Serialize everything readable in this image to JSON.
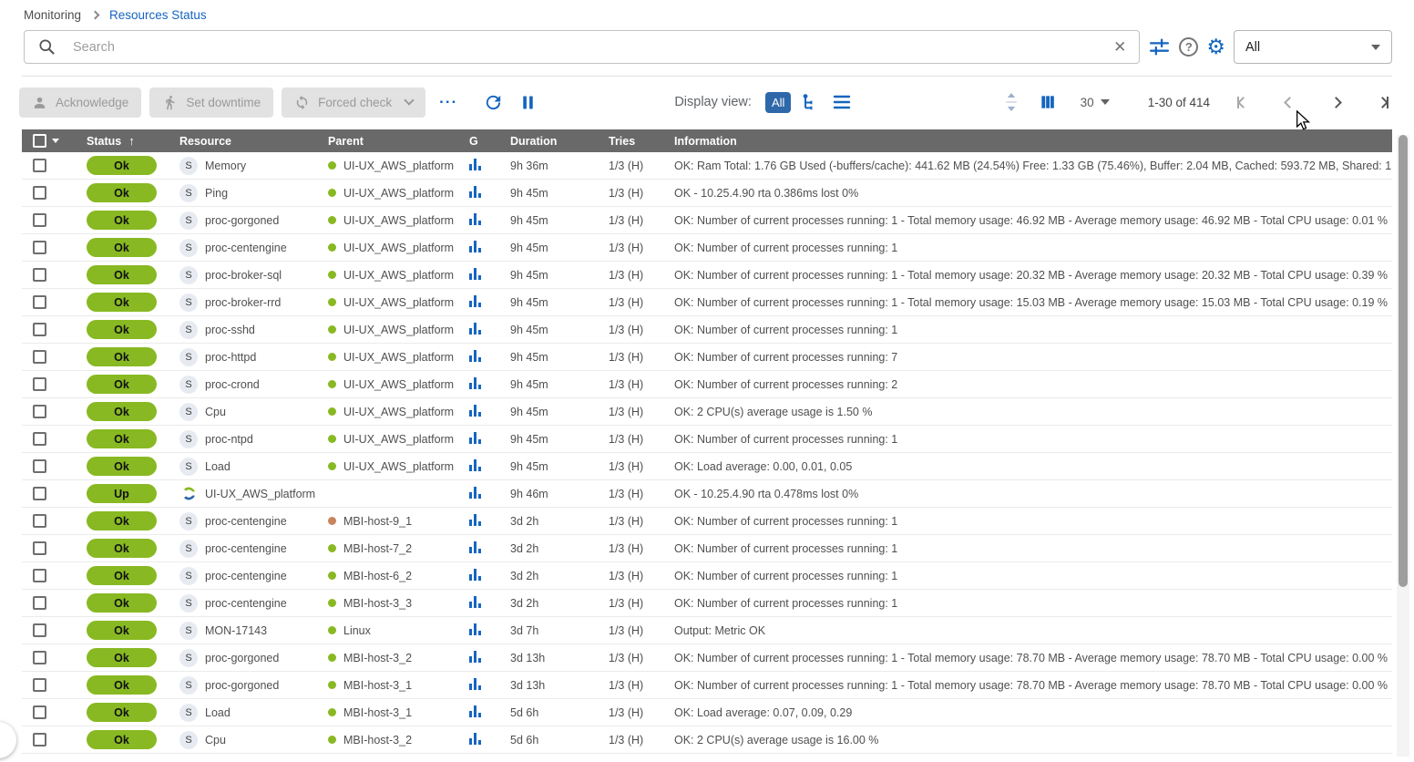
{
  "breadcrumb": {
    "items": [
      "Monitoring",
      "Resources Status"
    ]
  },
  "search": {
    "placeholder": "Search"
  },
  "filter_select": {
    "value": "All"
  },
  "icons": {
    "help": "?",
    "gear": "⚙",
    "clear": "✕",
    "more": "...",
    "service_letter": "S"
  },
  "toolbar": {
    "acknowledge_label": "Acknowledge",
    "set_downtime_label": "Set downtime",
    "forced_check_label": "Forced check",
    "display_view_label": "Display view:",
    "display_all_label": "All"
  },
  "pagination": {
    "per_page": "30",
    "range": "1-30 of 414"
  },
  "colors": {
    "ok_green": "#88b922",
    "parent_ok_dot": "#88b922",
    "parent_warning_dot": "#c8845c",
    "accent_blue": "#1565c0",
    "selected_view_bg": "#2e68aa",
    "header_bg": "#696969"
  },
  "table": {
    "headers": {
      "status": "Status",
      "sort_icon": "↑",
      "resource": "Resource",
      "parent": "Parent",
      "g": "G",
      "duration": "Duration",
      "tries": "Tries",
      "information": "Information"
    },
    "rows": [
      {
        "status": "Ok",
        "icon": "service",
        "resource": "Memory",
        "parent": "UI-UX_AWS_platform",
        "dot": "green",
        "duration": "9h 36m",
        "tries": "1/3 (H)",
        "info": "OK: Ram Total: 1.76 GB Used (-buffers/cache): 441.62 MB (24.54%) Free: 1.33 GB (75.46%), Buffer: 2.04 MB, Cached: 593.72 MB, Shared: 1..."
      },
      {
        "status": "Ok",
        "icon": "service",
        "resource": "Ping",
        "parent": "UI-UX_AWS_platform",
        "dot": "green",
        "duration": "9h 45m",
        "tries": "1/3 (H)",
        "info": "OK - 10.25.4.90 rta 0.386ms lost 0%"
      },
      {
        "status": "Ok",
        "icon": "service",
        "resource": "proc-gorgoned",
        "parent": "UI-UX_AWS_platform",
        "dot": "green",
        "duration": "9h 45m",
        "tries": "1/3 (H)",
        "info": "OK: Number of current processes running: 1 - Total memory usage: 46.92 MB - Average memory usage: 46.92 MB - Total CPU usage: 0.01 %"
      },
      {
        "status": "Ok",
        "icon": "service",
        "resource": "proc-centengine",
        "parent": "UI-UX_AWS_platform",
        "dot": "green",
        "duration": "9h 45m",
        "tries": "1/3 (H)",
        "info": "OK: Number of current processes running: 1"
      },
      {
        "status": "Ok",
        "icon": "service",
        "resource": "proc-broker-sql",
        "parent": "UI-UX_AWS_platform",
        "dot": "green",
        "duration": "9h 45m",
        "tries": "1/3 (H)",
        "info": "OK: Number of current processes running: 1 - Total memory usage: 20.32 MB - Average memory usage: 20.32 MB - Total CPU usage: 0.39 %"
      },
      {
        "status": "Ok",
        "icon": "service",
        "resource": "proc-broker-rrd",
        "parent": "UI-UX_AWS_platform",
        "dot": "green",
        "duration": "9h 45m",
        "tries": "1/3 (H)",
        "info": "OK: Number of current processes running: 1 - Total memory usage: 15.03 MB - Average memory usage: 15.03 MB - Total CPU usage: 0.19 %"
      },
      {
        "status": "Ok",
        "icon": "service",
        "resource": "proc-sshd",
        "parent": "UI-UX_AWS_platform",
        "dot": "green",
        "duration": "9h 45m",
        "tries": "1/3 (H)",
        "info": "OK: Number of current processes running: 1"
      },
      {
        "status": "Ok",
        "icon": "service",
        "resource": "proc-httpd",
        "parent": "UI-UX_AWS_platform",
        "dot": "green",
        "duration": "9h 45m",
        "tries": "1/3 (H)",
        "info": "OK: Number of current processes running: 7"
      },
      {
        "status": "Ok",
        "icon": "service",
        "resource": "proc-crond",
        "parent": "UI-UX_AWS_platform",
        "dot": "green",
        "duration": "9h 45m",
        "tries": "1/3 (H)",
        "info": "OK: Number of current processes running: 2"
      },
      {
        "status": "Ok",
        "icon": "service",
        "resource": "Cpu",
        "parent": "UI-UX_AWS_platform",
        "dot": "green",
        "duration": "9h 45m",
        "tries": "1/3 (H)",
        "info": "OK: 2 CPU(s) average usage is 1.50 %"
      },
      {
        "status": "Ok",
        "icon": "service",
        "resource": "proc-ntpd",
        "parent": "UI-UX_AWS_platform",
        "dot": "green",
        "duration": "9h 45m",
        "tries": "1/3 (H)",
        "info": "OK: Number of current processes running: 1"
      },
      {
        "status": "Ok",
        "icon": "service",
        "resource": "Load",
        "parent": "UI-UX_AWS_platform",
        "dot": "green",
        "duration": "9h 45m",
        "tries": "1/3 (H)",
        "info": "OK: Load average: 0.00, 0.01, 0.05"
      },
      {
        "status": "Up",
        "icon": "host",
        "resource": "UI-UX_AWS_platform",
        "parent": "",
        "dot": "none",
        "duration": "9h 46m",
        "tries": "1/3 (H)",
        "info": "OK - 10.25.4.90 rta 0.478ms lost 0%"
      },
      {
        "status": "Ok",
        "icon": "service",
        "resource": "proc-centengine",
        "parent": "MBI-host-9_1",
        "dot": "orange",
        "duration": "3d 2h",
        "tries": "1/3 (H)",
        "info": "OK: Number of current processes running: 1"
      },
      {
        "status": "Ok",
        "icon": "service",
        "resource": "proc-centengine",
        "parent": "MBI-host-7_2",
        "dot": "green",
        "duration": "3d 2h",
        "tries": "1/3 (H)",
        "info": "OK: Number of current processes running: 1"
      },
      {
        "status": "Ok",
        "icon": "service",
        "resource": "proc-centengine",
        "parent": "MBI-host-6_2",
        "dot": "green",
        "duration": "3d 2h",
        "tries": "1/3 (H)",
        "info": "OK: Number of current processes running: 1"
      },
      {
        "status": "Ok",
        "icon": "service",
        "resource": "proc-centengine",
        "parent": "MBI-host-3_3",
        "dot": "green",
        "duration": "3d 2h",
        "tries": "1/3 (H)",
        "info": "OK: Number of current processes running: 1"
      },
      {
        "status": "Ok",
        "icon": "service",
        "resource": "MON-17143",
        "parent": "Linux",
        "dot": "green",
        "duration": "3d 7h",
        "tries": "1/3 (H)",
        "info": "Output: Metric OK"
      },
      {
        "status": "Ok",
        "icon": "service",
        "resource": "proc-gorgoned",
        "parent": "MBI-host-3_2",
        "dot": "green",
        "duration": "3d 13h",
        "tries": "1/3 (H)",
        "info": "OK: Number of current processes running: 1 - Total memory usage: 78.70 MB - Average memory usage: 78.70 MB - Total CPU usage: 0.00 %"
      },
      {
        "status": "Ok",
        "icon": "service",
        "resource": "proc-gorgoned",
        "parent": "MBI-host-3_1",
        "dot": "green",
        "duration": "3d 13h",
        "tries": "1/3 (H)",
        "info": "OK: Number of current processes running: 1 - Total memory usage: 78.70 MB - Average memory usage: 78.70 MB - Total CPU usage: 0.00 %"
      },
      {
        "status": "Ok",
        "icon": "service",
        "resource": "Load",
        "parent": "MBI-host-3_1",
        "dot": "green",
        "duration": "5d 6h",
        "tries": "1/3 (H)",
        "info": "OK: Load average: 0.07, 0.09, 0.29"
      },
      {
        "status": "Ok",
        "icon": "service",
        "resource": "Cpu",
        "parent": "MBI-host-3_2",
        "dot": "green",
        "duration": "5d 6h",
        "tries": "1/3 (H)",
        "info": "OK: 2 CPU(s) average usage is 16.00 %"
      }
    ]
  }
}
